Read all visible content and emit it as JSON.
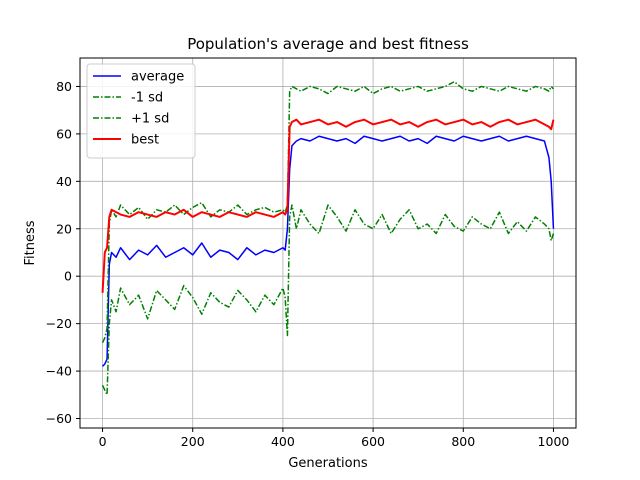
{
  "chart_data": {
    "type": "line",
    "title": "Population's average and best fitness",
    "xlabel": "Generations",
    "ylabel": "Fitness",
    "xlim": [
      -50,
      1050
    ],
    "ylim": [
      -64,
      92
    ],
    "xticks": [
      0,
      200,
      400,
      600,
      800,
      1000
    ],
    "yticks": [
      -60,
      -40,
      -20,
      0,
      20,
      40,
      60,
      80
    ],
    "grid": true,
    "legend_position": "upper-left",
    "series": [
      {
        "name": "average",
        "color": "#0000ff",
        "style": "solid",
        "x": [
          0,
          5,
          10,
          15,
          20,
          30,
          40,
          60,
          80,
          100,
          120,
          140,
          160,
          180,
          200,
          220,
          240,
          260,
          280,
          300,
          320,
          340,
          360,
          380,
          400,
          405,
          410,
          415,
          420,
          430,
          440,
          460,
          480,
          500,
          520,
          540,
          560,
          580,
          600,
          620,
          640,
          660,
          680,
          700,
          720,
          740,
          760,
          780,
          800,
          820,
          840,
          860,
          880,
          900,
          920,
          940,
          960,
          980,
          990,
          995,
          1000
        ],
        "y": [
          -38,
          -37,
          -35,
          5,
          10,
          8,
          12,
          7,
          11,
          9,
          13,
          8,
          10,
          12,
          9,
          14,
          8,
          11,
          10,
          7,
          12,
          9,
          11,
          10,
          12,
          11,
          20,
          45,
          55,
          57,
          58,
          57,
          59,
          58,
          57,
          58,
          56,
          59,
          58,
          57,
          58,
          59,
          57,
          58,
          56,
          59,
          58,
          57,
          59,
          58,
          57,
          58,
          59,
          57,
          58,
          59,
          58,
          57,
          50,
          40,
          20
        ]
      },
      {
        "name": "-1 sd",
        "color": "#008000",
        "style": "dashdot",
        "x": [
          0,
          5,
          10,
          15,
          20,
          30,
          40,
          60,
          80,
          100,
          120,
          140,
          160,
          180,
          200,
          220,
          240,
          260,
          280,
          300,
          320,
          340,
          360,
          380,
          400,
          405,
          410,
          415,
          420,
          430,
          440,
          460,
          480,
          500,
          520,
          540,
          560,
          580,
          600,
          620,
          640,
          660,
          680,
          700,
          720,
          740,
          760,
          780,
          800,
          820,
          840,
          860,
          880,
          900,
          920,
          940,
          960,
          980,
          990,
          995,
          1000
        ],
        "y": [
          -46,
          -48,
          -50,
          -20,
          -10,
          -15,
          -5,
          -12,
          -8,
          -18,
          -6,
          -10,
          -14,
          -4,
          -9,
          -16,
          -7,
          -11,
          -13,
          -6,
          -10,
          -15,
          -8,
          -12,
          -5,
          -9,
          -25,
          25,
          30,
          20,
          28,
          22,
          18,
          30,
          25,
          19,
          28,
          22,
          20,
          26,
          18,
          24,
          28,
          20,
          22,
          18,
          26,
          21,
          19,
          25,
          22,
          20,
          27,
          18,
          23,
          19,
          25,
          22,
          20,
          15,
          18
        ]
      },
      {
        "name": "+1 sd",
        "color": "#008000",
        "style": "dashdot",
        "x": [
          0,
          5,
          10,
          15,
          20,
          30,
          40,
          60,
          80,
          100,
          120,
          140,
          160,
          180,
          200,
          220,
          240,
          260,
          280,
          300,
          320,
          340,
          360,
          380,
          400,
          405,
          410,
          415,
          420,
          430,
          440,
          460,
          480,
          500,
          520,
          540,
          560,
          580,
          600,
          620,
          640,
          660,
          680,
          700,
          720,
          740,
          760,
          780,
          800,
          820,
          840,
          860,
          880,
          900,
          920,
          940,
          960,
          980,
          990,
          995,
          1000
        ],
        "y": [
          -28,
          -26,
          -22,
          22,
          28,
          25,
          30,
          26,
          29,
          24,
          28,
          27,
          30,
          26,
          29,
          31,
          25,
          28,
          27,
          30,
          26,
          28,
          29,
          27,
          28,
          27,
          30,
          78,
          80,
          79,
          78,
          80,
          79,
          77,
          80,
          79,
          78,
          80,
          77,
          79,
          80,
          78,
          79,
          80,
          78,
          79,
          80,
          82,
          79,
          78,
          80,
          79,
          78,
          80,
          79,
          78,
          80,
          79,
          78,
          80,
          79
        ]
      },
      {
        "name": "best",
        "color": "#ff0000",
        "style": "solid",
        "x": [
          0,
          5,
          10,
          15,
          20,
          30,
          40,
          60,
          80,
          100,
          120,
          140,
          160,
          180,
          200,
          220,
          240,
          260,
          280,
          300,
          320,
          340,
          360,
          380,
          400,
          405,
          410,
          415,
          420,
          430,
          440,
          460,
          480,
          500,
          520,
          540,
          560,
          580,
          600,
          620,
          640,
          660,
          680,
          700,
          720,
          740,
          760,
          780,
          800,
          820,
          840,
          860,
          880,
          900,
          920,
          940,
          960,
          980,
          990,
          995,
          1000
        ],
        "y": [
          -7,
          10,
          12,
          25,
          28,
          27,
          26,
          25,
          27,
          26,
          25,
          27,
          26,
          28,
          25,
          27,
          26,
          25,
          27,
          26,
          25,
          27,
          26,
          25,
          27,
          26,
          28,
          63,
          65,
          66,
          64,
          65,
          66,
          64,
          65,
          63,
          65,
          66,
          64,
          65,
          66,
          64,
          65,
          63,
          65,
          66,
          64,
          65,
          66,
          64,
          65,
          63,
          65,
          66,
          64,
          65,
          66,
          64,
          63,
          62,
          66
        ]
      }
    ]
  }
}
